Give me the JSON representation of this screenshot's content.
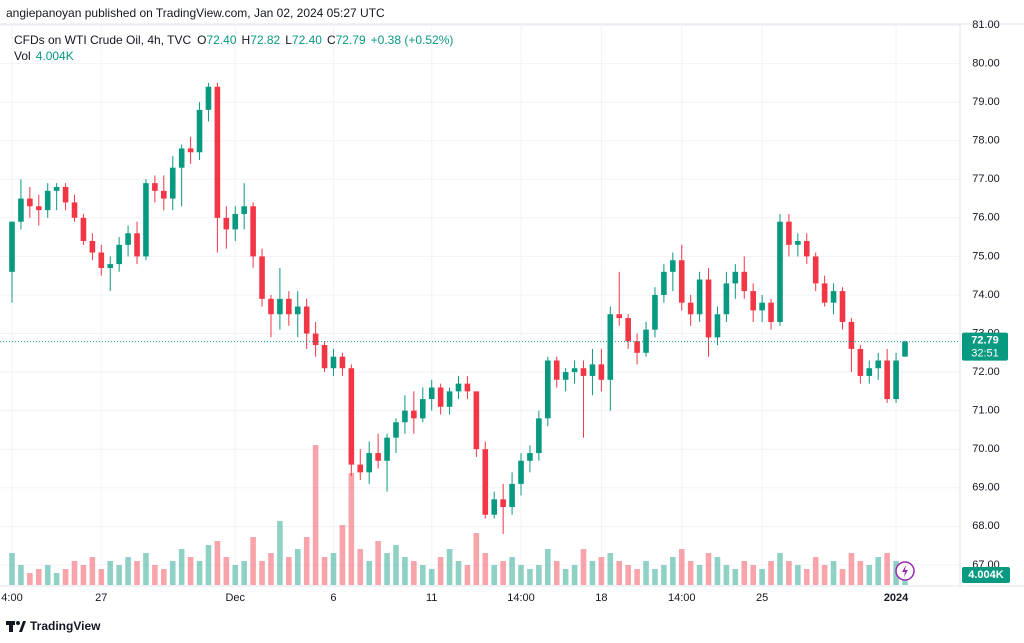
{
  "header": {
    "publisher": "angiepanoyan published on TradingView.com, Jan 02, 2024 05:27 UTC"
  },
  "legend": {
    "symbol": "CFDs on WTI Crude Oil, 4h, TVC",
    "open_label": "O",
    "open": "72.40",
    "high_label": "H",
    "high": "72.82",
    "low_label": "L",
    "low": "72.40",
    "close_label": "C",
    "close": "72.79",
    "change": "+0.38 (+0.52%)",
    "volume_label": "Vol",
    "volume": "4.004K"
  },
  "footer": {
    "brand": "TradingView"
  },
  "chart_data": {
    "type": "candlestick",
    "up_color": "#089981",
    "down_color": "#f23645",
    "grid": true,
    "categories": [
      "4:00",
      null,
      null,
      null,
      null,
      null,
      null,
      null,
      null,
      null,
      "27",
      null,
      null,
      null,
      null,
      null,
      null,
      null,
      null,
      null,
      null,
      null,
      null,
      null,
      null,
      "Dec",
      null,
      null,
      null,
      null,
      null,
      null,
      null,
      null,
      null,
      null,
      "6",
      null,
      null,
      null,
      null,
      null,
      null,
      null,
      null,
      null,
      null,
      "11",
      null,
      null,
      null,
      null,
      null,
      null,
      null,
      null,
      null,
      "14:00",
      null,
      null,
      null,
      null,
      null,
      null,
      null,
      null,
      "18",
      null,
      null,
      null,
      null,
      null,
      null,
      null,
      null,
      "14:00",
      null,
      null,
      null,
      null,
      null,
      null,
      null,
      null,
      "25",
      null,
      null,
      null,
      null,
      null,
      null,
      null,
      null,
      null,
      null,
      null,
      null,
      null,
      null,
      "2024",
      null
    ],
    "open": [
      74.6,
      75.9,
      76.5,
      76.3,
      76.2,
      76.7,
      76.8,
      76.4,
      76.0,
      75.4,
      75.1,
      74.7,
      74.8,
      75.3,
      75.6,
      75.0,
      76.9,
      76.7,
      76.5,
      77.3,
      77.8,
      77.7,
      78.8,
      79.4,
      76.0,
      75.7,
      76.1,
      76.3,
      75.0,
      73.9,
      73.5,
      73.9,
      73.5,
      73.7,
      73.0,
      72.7,
      72.1,
      72.4,
      72.1,
      69.6,
      69.4,
      69.9,
      69.7,
      70.3,
      70.7,
      71.0,
      70.8,
      71.3,
      71.6,
      71.1,
      71.5,
      71.7,
      71.5,
      70.0,
      68.3,
      68.7,
      68.5,
      69.1,
      69.7,
      69.9,
      70.8,
      72.3,
      71.8,
      72.0,
      72.1,
      71.9,
      72.2,
      71.8,
      73.5,
      73.4,
      72.8,
      72.5,
      73.1,
      74.0,
      74.6,
      74.9,
      73.8,
      73.5,
      74.4,
      72.9,
      73.5,
      74.3,
      74.6,
      74.1,
      73.6,
      73.8,
      73.3,
      75.9,
      75.3,
      75.4,
      75.0,
      74.3,
      73.8,
      74.1,
      73.3,
      72.6,
      71.9,
      72.1,
      72.3,
      71.3,
      72.4
    ],
    "high": [
      75.9,
      77.0,
      76.8,
      76.6,
      76.9,
      76.9,
      76.9,
      76.6,
      76.1,
      75.6,
      75.3,
      75.0,
      75.5,
      75.8,
      75.9,
      77.0,
      77.1,
      77.1,
      77.6,
      77.9,
      78.1,
      79.0,
      79.5,
      79.5,
      76.3,
      76.3,
      76.9,
      76.4,
      75.2,
      74.0,
      74.7,
      74.1,
      74.1,
      73.9,
      73.3,
      72.8,
      72.6,
      72.5,
      72.2,
      70.0,
      70.2,
      70.4,
      70.4,
      70.8,
      71.4,
      71.5,
      71.6,
      71.8,
      71.7,
      71.6,
      71.9,
      71.9,
      71.5,
      70.2,
      68.9,
      69.1,
      69.4,
      69.9,
      70.1,
      71.0,
      72.4,
      72.4,
      72.1,
      72.3,
      72.3,
      72.6,
      72.6,
      73.7,
      74.6,
      73.5,
      73.0,
      73.3,
      74.2,
      74.8,
      75.1,
      75.3,
      74.0,
      74.6,
      74.7,
      73.7,
      74.6,
      74.8,
      75.0,
      74.3,
      74.0,
      73.9,
      76.1,
      76.1,
      75.6,
      75.6,
      75.1,
      74.5,
      74.3,
      74.2,
      73.4,
      72.7,
      72.3,
      72.5,
      72.6,
      72.5,
      72.82
    ],
    "low": [
      73.8,
      75.7,
      76.0,
      75.8,
      76.0,
      76.2,
      76.2,
      75.9,
      75.3,
      74.9,
      74.5,
      74.1,
      74.6,
      75.0,
      74.8,
      74.9,
      76.4,
      76.2,
      76.2,
      76.3,
      77.4,
      77.5,
      78.5,
      75.1,
      75.2,
      75.4,
      75.7,
      74.7,
      73.7,
      72.9,
      73.1,
      73.2,
      72.9,
      72.6,
      72.4,
      72.0,
      71.9,
      71.9,
      69.3,
      69.2,
      69.1,
      69.5,
      68.9,
      69.9,
      70.4,
      70.4,
      70.7,
      71.0,
      70.9,
      70.9,
      71.3,
      71.3,
      69.8,
      68.2,
      68.2,
      67.8,
      68.3,
      68.8,
      69.4,
      69.7,
      70.6,
      71.6,
      71.5,
      71.7,
      70.3,
      71.4,
      71.5,
      71.0,
      73.2,
      72.6,
      72.2,
      72.4,
      72.9,
      73.8,
      74.1,
      73.6,
      73.2,
      73.3,
      72.4,
      72.7,
      73.3,
      73.9,
      73.9,
      73.3,
      73.3,
      73.1,
      73.2,
      75.0,
      75.0,
      74.8,
      74.1,
      73.7,
      73.5,
      73.1,
      72.0,
      71.7,
      71.7,
      71.8,
      71.2,
      71.2,
      72.4
    ],
    "close": [
      75.9,
      76.5,
      76.3,
      76.2,
      76.7,
      76.8,
      76.4,
      76.0,
      75.4,
      75.1,
      74.7,
      74.8,
      75.3,
      75.6,
      75.0,
      76.9,
      76.7,
      76.5,
      77.3,
      77.8,
      77.7,
      78.8,
      79.4,
      76.0,
      75.7,
      76.1,
      76.3,
      75.0,
      73.9,
      73.5,
      73.9,
      73.5,
      73.7,
      73.0,
      72.7,
      72.1,
      72.4,
      72.1,
      69.6,
      69.4,
      69.9,
      69.7,
      70.3,
      70.7,
      71.0,
      70.8,
      71.3,
      71.6,
      71.1,
      71.5,
      71.7,
      71.5,
      70.0,
      68.3,
      68.7,
      68.5,
      69.1,
      69.7,
      69.9,
      70.8,
      72.3,
      71.8,
      72.0,
      72.1,
      71.9,
      72.2,
      71.8,
      73.5,
      73.4,
      72.8,
      72.5,
      73.1,
      74.0,
      74.6,
      74.9,
      73.8,
      73.5,
      74.4,
      72.9,
      73.5,
      74.3,
      74.6,
      74.1,
      73.6,
      73.8,
      73.3,
      75.9,
      75.3,
      75.4,
      75.0,
      74.3,
      73.8,
      74.1,
      73.3,
      72.6,
      71.9,
      72.1,
      72.3,
      71.3,
      72.3,
      72.79
    ],
    "volume": [
      8000,
      5000,
      3000,
      4000,
      5000,
      3000,
      4000,
      6000,
      5000,
      7000,
      4000,
      6000,
      5000,
      7000,
      6000,
      8000,
      5000,
      4000,
      6000,
      9000,
      7000,
      6000,
      10000,
      11000,
      7000,
      5000,
      6000,
      12000,
      6000,
      8000,
      16000,
      7000,
      9000,
      12000,
      35000,
      7000,
      8000,
      15000,
      28000,
      9000,
      6000,
      11000,
      8000,
      10000,
      7000,
      6000,
      5000,
      4000,
      7000,
      9000,
      6000,
      5000,
      13000,
      8000,
      5000,
      6000,
      7000,
      5000,
      4000,
      5000,
      9000,
      6000,
      4000,
      5000,
      9000,
      6000,
      7000,
      8000,
      6000,
      5000,
      4000,
      6000,
      4000,
      5000,
      7000,
      9000,
      6000,
      5000,
      8000,
      7000,
      5000,
      4000,
      6000,
      5000,
      4000,
      6000,
      8000,
      6000,
      5000,
      4000,
      7000,
      5000,
      6000,
      4000,
      8000,
      6000,
      5000,
      7000,
      8000,
      6000,
      4004
    ],
    "ylim": [
      66.53,
      81.39
    ],
    "yticks": [
      {
        "value": 67,
        "label": "67.00"
      },
      {
        "value": 68,
        "label": "68.00"
      },
      {
        "value": 69,
        "label": "69.00"
      },
      {
        "value": 70,
        "label": "70.00"
      },
      {
        "value": 71,
        "label": "71.00"
      },
      {
        "value": 72,
        "label": "72.00"
      },
      {
        "value": 73,
        "label": "73.00"
      },
      {
        "value": 74,
        "label": "74.00"
      },
      {
        "value": 75,
        "label": "75.00"
      },
      {
        "value": 76,
        "label": "76.00"
      },
      {
        "value": 77,
        "label": "77.00"
      },
      {
        "value": 78,
        "label": "78.00"
      },
      {
        "value": 79,
        "label": "79.00"
      },
      {
        "value": 80,
        "label": "80.00"
      },
      {
        "value": 81,
        "label": "81.00"
      }
    ],
    "last_price": {
      "value": 72.79,
      "label": "72.79"
    },
    "countdown": "32:51",
    "last_volume": {
      "value": 4004,
      "label": "4.004K"
    }
  }
}
